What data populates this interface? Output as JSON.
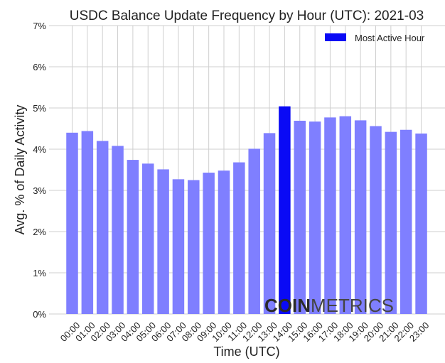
{
  "chart_data": {
    "type": "bar",
    "title": "USDC Balance Update Frequency by Hour (UTC): 2021-03",
    "xlabel": "Time (UTC)",
    "ylabel": "Avg. % of Daily Activity",
    "categories": [
      "00:00",
      "01:00",
      "02:00",
      "03:00",
      "04:00",
      "05:00",
      "06:00",
      "07:00",
      "08:00",
      "09:00",
      "10:00",
      "11:00",
      "12:00",
      "13:00",
      "14:00",
      "15:00",
      "16:00",
      "17:00",
      "18:00",
      "19:00",
      "20:00",
      "21:00",
      "22:00",
      "23:00"
    ],
    "values": [
      4.4,
      4.44,
      4.2,
      4.08,
      3.74,
      3.65,
      3.51,
      3.27,
      3.25,
      3.43,
      3.48,
      3.68,
      4.01,
      4.39,
      5.04,
      4.69,
      4.67,
      4.77,
      4.8,
      4.7,
      4.56,
      4.42,
      4.47,
      4.38
    ],
    "highlight_index": 14,
    "ylim": [
      0,
      7
    ],
    "yticks": [
      "0%",
      "1%",
      "2%",
      "3%",
      "4%",
      "5%",
      "6%",
      "7%"
    ],
    "grid": true,
    "legend": {
      "label": "Most Active Hour",
      "placement": "top-right"
    },
    "colors": {
      "normal": "#7f7fff",
      "highlight": "#0a0af5"
    }
  },
  "watermark": {
    "bold": "COIN",
    "light": "METRICS"
  }
}
